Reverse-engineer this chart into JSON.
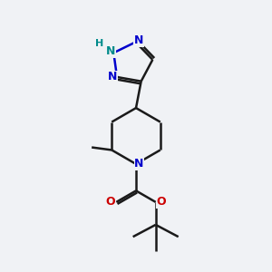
{
  "background_color": "#f0f2f5",
  "bond_color": "#1a1a1a",
  "nitrogen_color": "#0000cc",
  "nitrogen_h_color": "#008b8b",
  "oxygen_color": "#cc0000",
  "line_width": 1.8,
  "fig_size": [
    3.0,
    3.0
  ],
  "dpi": 100,
  "xlim": [
    0,
    10
  ],
  "ylim": [
    0,
    10
  ]
}
